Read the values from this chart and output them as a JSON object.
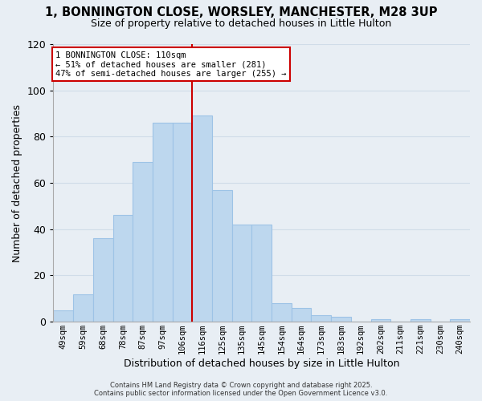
{
  "title_line1": "1, BONNINGTON CLOSE, WORSLEY, MANCHESTER, M28 3UP",
  "title_line2": "Size of property relative to detached houses in Little Hulton",
  "xlabel": "Distribution of detached houses by size in Little Hulton",
  "ylabel": "Number of detached properties",
  "bar_labels": [
    "49sqm",
    "59sqm",
    "68sqm",
    "78sqm",
    "87sqm",
    "97sqm",
    "106sqm",
    "116sqm",
    "125sqm",
    "135sqm",
    "145sqm",
    "154sqm",
    "164sqm",
    "173sqm",
    "183sqm",
    "192sqm",
    "202sqm",
    "211sqm",
    "221sqm",
    "230sqm",
    "240sqm"
  ],
  "bar_values": [
    5,
    12,
    36,
    46,
    69,
    86,
    86,
    89,
    57,
    42,
    42,
    8,
    6,
    3,
    2,
    0,
    1,
    0,
    1,
    0,
    1
  ],
  "bar_color": "#bdd7ee",
  "bar_edge_color": "#9dc3e6",
  "vline_color": "#cc0000",
  "annotation_title": "1 BONNINGTON CLOSE: 110sqm",
  "annotation_line2": "← 51% of detached houses are smaller (281)",
  "annotation_line3": "47% of semi-detached houses are larger (255) →",
  "annotation_box_facecolor": "white",
  "annotation_box_edgecolor": "#cc0000",
  "ylim": [
    0,
    120
  ],
  "yticks": [
    0,
    20,
    40,
    60,
    80,
    100,
    120
  ],
  "grid_color": "#d0dce8",
  "background_color": "#e8eef4",
  "footer_line1": "Contains HM Land Registry data © Crown copyright and database right 2025.",
  "footer_line2": "Contains public sector information licensed under the Open Government Licence v3.0."
}
